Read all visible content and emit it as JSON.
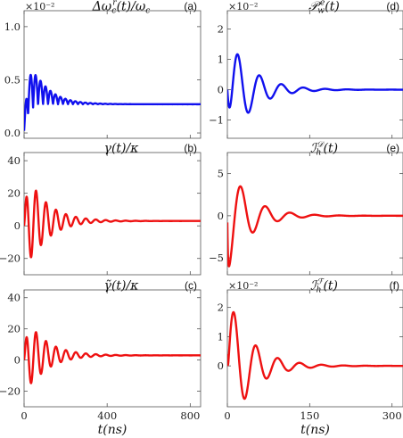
{
  "colors": {
    "blue": "#1010ee",
    "red": "#ee1111",
    "axis": "#555555"
  },
  "chart_data": [
    {
      "type": "line",
      "panel": "(a)",
      "title": "Δω_c^r(t)/ω_c",
      "sci": "×10⁻²",
      "color": "blue",
      "xlim": [
        0,
        850
      ],
      "ylim": [
        -0.05,
        1.15
      ],
      "yticks": [
        0.0,
        0.5,
        1.0
      ],
      "ytick_labels": [
        "0.0",
        "0.5",
        "1.0"
      ],
      "xticks": [
        0,
        400,
        800
      ],
      "xtick_labels": [],
      "xlabel": "",
      "model": {
        "kind": "damped",
        "base": 0.27,
        "amp": 0.62,
        "period": 48,
        "tau": 80,
        "phase": 0.6,
        "rise": 20,
        "t0": 0,
        "abs": true,
        "start": 0.02
      }
    },
    {
      "type": "line",
      "panel": "(b)",
      "title": "γ(t)/κ",
      "sci": "",
      "color": "red",
      "xlim": [
        0,
        850
      ],
      "ylim": [
        -30,
        45
      ],
      "yticks": [
        -20,
        0,
        20,
        40
      ],
      "ytick_labels": [
        "−20",
        "0",
        "20",
        "40"
      ],
      "xticks": [
        0,
        400,
        800
      ],
      "xtick_labels": [],
      "xlabel": "",
      "model": {
        "kind": "damped",
        "base": 3,
        "amp": 35,
        "period": 48,
        "tau": 95,
        "phase": 0.3,
        "rise": 15,
        "t0": 0,
        "abs": false,
        "start": 0
      }
    },
    {
      "type": "line",
      "panel": "(c)",
      "title": "γ̃(t)/κ",
      "sci": "",
      "color": "red",
      "xlim": [
        0,
        850
      ],
      "ylim": [
        -30,
        45
      ],
      "yticks": [
        -20,
        0,
        20,
        40
      ],
      "ytick_labels": [
        "−20",
        "0",
        "20",
        "40"
      ],
      "xticks": [
        0,
        400,
        800
      ],
      "xtick_labels": [
        "0",
        "400",
        "800"
      ],
      "xlabel": "t(ns)",
      "model": {
        "kind": "damped",
        "base": 3,
        "amp": 28,
        "period": 48,
        "tau": 95,
        "phase": 0.3,
        "rise": 15,
        "t0": 0,
        "abs": false,
        "start": 0
      }
    },
    {
      "type": "line",
      "panel": "(d)",
      "title": "𝒫_w^e(t)",
      "sci": "×10⁻²",
      "color": "blue",
      "xlim": [
        0,
        320
      ],
      "ylim": [
        -1.6,
        2.6
      ],
      "yticks": [
        -1,
        0,
        1,
        2
      ],
      "ytick_labels": [
        "−1",
        "0",
        "1",
        "2"
      ],
      "xticks": [
        0,
        150,
        300
      ],
      "xtick_labels": [],
      "xlabel": "",
      "model": {
        "kind": "damped",
        "base": 0,
        "amp": 1.9,
        "period": 40,
        "tau": 42,
        "phase": -1.4,
        "rise": 6,
        "t0": 0,
        "abs": false,
        "start": 0
      }
    },
    {
      "type": "line",
      "panel": "(e)",
      "title": "ℐ_h^𝒟(t)",
      "sci": "",
      "color": "red",
      "xlim": [
        0,
        320
      ],
      "ylim": [
        -7,
        7.5
      ],
      "yticks": [
        -5,
        0,
        5
      ],
      "ytick_labels": [
        "−5",
        "0",
        "5"
      ],
      "xticks": [
        0,
        150,
        300
      ],
      "xtick_labels": [],
      "xlabel": "",
      "model": {
        "kind": "damped",
        "base": 0,
        "amp": 6.4,
        "period": 45,
        "tau": 40,
        "phase": -1.9,
        "rise": 1,
        "t0": 0,
        "abs": false,
        "start": -0.8
      }
    },
    {
      "type": "line",
      "panel": "(f)",
      "title": "ℐ_h^ℱ(t)",
      "sci": "×10⁻²",
      "color": "red",
      "xlim": [
        0,
        320
      ],
      "ylim": [
        -1.4,
        2.6
      ],
      "yticks": [
        0,
        1,
        2
      ],
      "ytick_labels": [
        "0",
        "1",
        "2"
      ],
      "xticks": [
        0,
        150,
        300
      ],
      "xtick_labels": [
        "0",
        "150",
        "300"
      ],
      "xlabel": "t(ns)",
      "model": {
        "kind": "damped",
        "base": 0,
        "amp": 2.4,
        "period": 40,
        "tau": 42,
        "phase": -0.35,
        "rise": 1,
        "t0": 0,
        "abs": false,
        "start": 0.4
      }
    }
  ]
}
